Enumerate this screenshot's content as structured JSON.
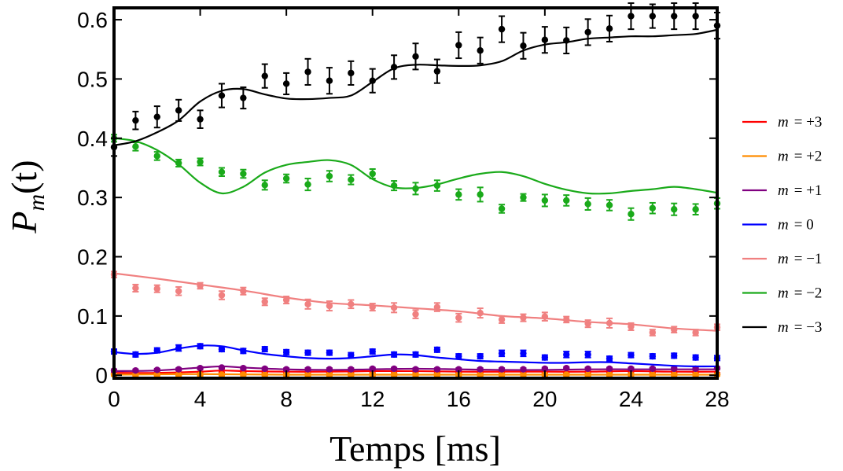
{
  "chart_data": {
    "type": "scatter",
    "xlabel": "Temps [ms]",
    "ylabel": "P_m(t)",
    "ylabel_parts": {
      "main": "P",
      "sub": "m",
      "arg": "(t)"
    },
    "xlim": [
      0,
      28
    ],
    "ylim": [
      -0.005,
      0.62
    ],
    "xticks": [
      0,
      4,
      8,
      12,
      16,
      20,
      24,
      28
    ],
    "xtick_labels": [
      "0",
      "4",
      "8",
      "12",
      "16",
      "20",
      "24",
      "28"
    ],
    "yticks": [
      0,
      0.1,
      0.2,
      0.3,
      0.4,
      0.5,
      0.6
    ],
    "ytick_labels": [
      "0",
      "0.1",
      "0.2",
      "0.3",
      "0.4",
      "0.5",
      "0.6"
    ],
    "grid": false,
    "legend_position": "right",
    "series": [
      {
        "name": "m = +3",
        "label_m": "m",
        "label_val": "= +3",
        "color": "#ff0000",
        "x": [
          0,
          1,
          2,
          3,
          4,
          5,
          6,
          7,
          8,
          9,
          10,
          11,
          12,
          13,
          14,
          15,
          16,
          17,
          18,
          19,
          20,
          21,
          22,
          23,
          24,
          25,
          26,
          27,
          28
        ],
        "y": [
          0.003,
          0.002,
          0.002,
          0.002,
          0.002,
          0.003,
          0.003,
          0.002,
          0.002,
          0.002,
          0.002,
          0.002,
          0.002,
          0.002,
          0.002,
          0.002,
          0.002,
          0.002,
          0.002,
          0.002,
          0.002,
          0.002,
          0.002,
          0.002,
          0.002,
          0.002,
          0.002,
          0.002,
          0.002
        ],
        "err": [
          0.002,
          0.002,
          0.002,
          0.002,
          0.002,
          0.002,
          0.002,
          0.002,
          0.002,
          0.002,
          0.002,
          0.002,
          0.002,
          0.002,
          0.002,
          0.002,
          0.002,
          0.002,
          0.002,
          0.002,
          0.002,
          0.002,
          0.002,
          0.002,
          0.002,
          0.002,
          0.002,
          0.002,
          0.002
        ],
        "fit_x": [
          0,
          2,
          4,
          5,
          6,
          8,
          10,
          12,
          14,
          16,
          18,
          20,
          22,
          24,
          26,
          28
        ],
        "fit_y": [
          0.004,
          0.004,
          0.006,
          0.008,
          0.007,
          0.006,
          0.006,
          0.007,
          0.007,
          0.006,
          0.006,
          0.006,
          0.006,
          0.007,
          0.006,
          0.006
        ]
      },
      {
        "name": "m = +2",
        "label_m": "m",
        "label_val": "= +2",
        "color": "#ff8c00",
        "x": [
          0,
          1,
          2,
          3,
          4,
          5,
          6,
          7,
          8,
          9,
          10,
          11,
          12,
          13,
          14,
          15,
          16,
          17,
          18,
          19,
          20,
          21,
          22,
          23,
          24,
          25,
          26,
          27,
          28
        ],
        "y": [
          0.001,
          0.001,
          0.001,
          0.001,
          0.001,
          0.001,
          0.001,
          0.001,
          0.001,
          0.001,
          0.001,
          0.001,
          0.001,
          0.001,
          0.001,
          0.001,
          0.001,
          0.001,
          0.001,
          0.001,
          0.001,
          0.001,
          0.001,
          0.001,
          0.001,
          0.001,
          0.001,
          0.001,
          0.001
        ],
        "err": [
          0.002,
          0.002,
          0.002,
          0.002,
          0.002,
          0.002,
          0.002,
          0.002,
          0.002,
          0.002,
          0.002,
          0.002,
          0.002,
          0.002,
          0.002,
          0.002,
          0.002,
          0.002,
          0.002,
          0.002,
          0.002,
          0.002,
          0.002,
          0.002,
          0.002,
          0.002,
          0.002,
          0.002,
          0.002
        ],
        "fit_x": [
          0,
          4,
          8,
          12,
          16,
          20,
          24,
          28
        ],
        "fit_y": [
          0.001,
          0.002,
          0.001,
          0.001,
          0.001,
          0.001,
          0.001,
          0.001
        ]
      },
      {
        "name": "m = +1",
        "label_m": "m",
        "label_val": "= +1",
        "color": "#800080",
        "x": [
          0,
          1,
          2,
          3,
          4,
          5,
          6,
          7,
          8,
          9,
          10,
          11,
          12,
          13,
          14,
          15,
          16,
          17,
          18,
          19,
          20,
          21,
          22,
          23,
          24,
          25,
          26,
          27,
          28
        ],
        "y": [
          0.008,
          0.008,
          0.009,
          0.01,
          0.012,
          0.013,
          0.012,
          0.011,
          0.01,
          0.01,
          0.01,
          0.01,
          0.011,
          0.011,
          0.01,
          0.01,
          0.01,
          0.01,
          0.01,
          0.01,
          0.011,
          0.012,
          0.011,
          0.011,
          0.011,
          0.011,
          0.011,
          0.011,
          0.012
        ],
        "err": [
          0.002,
          0.002,
          0.002,
          0.002,
          0.002,
          0.002,
          0.002,
          0.002,
          0.002,
          0.002,
          0.002,
          0.002,
          0.002,
          0.002,
          0.002,
          0.002,
          0.002,
          0.002,
          0.002,
          0.002,
          0.002,
          0.002,
          0.002,
          0.002,
          0.002,
          0.002,
          0.002,
          0.002,
          0.002
        ],
        "fit_x": [
          0,
          2,
          4,
          5,
          6,
          8,
          10,
          12,
          14,
          16,
          18,
          20,
          22,
          24,
          26,
          28
        ],
        "fit_y": [
          0.007,
          0.008,
          0.013,
          0.015,
          0.013,
          0.01,
          0.009,
          0.01,
          0.011,
          0.01,
          0.009,
          0.009,
          0.01,
          0.01,
          0.01,
          0.01
        ]
      },
      {
        "name": "m = 0",
        "label_m": "m",
        "label_val": "= 0",
        "color": "#0000ff",
        "x": [
          0,
          1,
          2,
          3,
          4,
          5,
          6,
          7,
          8,
          9,
          10,
          11,
          12,
          13,
          14,
          15,
          16,
          17,
          18,
          19,
          20,
          21,
          22,
          23,
          24,
          25,
          26,
          27,
          28
        ],
        "y": [
          0.04,
          0.035,
          0.042,
          0.046,
          0.049,
          0.044,
          0.041,
          0.044,
          0.039,
          0.038,
          0.038,
          0.034,
          0.04,
          0.035,
          0.035,
          0.043,
          0.032,
          0.032,
          0.037,
          0.037,
          0.03,
          0.035,
          0.035,
          0.028,
          0.034,
          0.032,
          0.033,
          0.03,
          0.029
        ],
        "err": [
          0.004,
          0.004,
          0.004,
          0.005,
          0.004,
          0.004,
          0.004,
          0.004,
          0.004,
          0.004,
          0.004,
          0.004,
          0.004,
          0.004,
          0.004,
          0.004,
          0.004,
          0.004,
          0.005,
          0.005,
          0.004,
          0.005,
          0.005,
          0.004,
          0.004,
          0.004,
          0.004,
          0.004,
          0.004
        ],
        "fit_x": [
          0,
          1,
          2,
          3,
          4,
          5,
          6,
          7,
          8,
          9,
          10,
          11,
          12,
          13,
          14,
          15,
          16,
          17,
          18,
          19,
          20,
          21,
          22,
          23,
          24,
          25,
          26,
          27,
          28
        ],
        "fit_y": [
          0.039,
          0.036,
          0.038,
          0.045,
          0.05,
          0.049,
          0.042,
          0.036,
          0.032,
          0.029,
          0.028,
          0.029,
          0.032,
          0.035,
          0.034,
          0.03,
          0.027,
          0.024,
          0.023,
          0.022,
          0.021,
          0.021,
          0.022,
          0.022,
          0.02,
          0.018,
          0.016,
          0.015,
          0.015
        ]
      },
      {
        "name": "m = −1",
        "label_m": "m",
        "label_val": "= −1",
        "color": "#f08080",
        "x": [
          0,
          1,
          2,
          3,
          4,
          5,
          6,
          7,
          8,
          9,
          10,
          11,
          12,
          13,
          14,
          15,
          16,
          17,
          18,
          19,
          20,
          21,
          22,
          23,
          24,
          25,
          26,
          27,
          28
        ],
        "y": [
          0.17,
          0.147,
          0.146,
          0.142,
          0.151,
          0.135,
          0.142,
          0.124,
          0.127,
          0.12,
          0.117,
          0.12,
          0.115,
          0.114,
          0.103,
          0.115,
          0.097,
          0.105,
          0.094,
          0.097,
          0.099,
          0.094,
          0.087,
          0.088,
          0.082,
          0.072,
          0.077,
          0.072,
          0.081
        ],
        "err": [
          0.005,
          0.006,
          0.006,
          0.007,
          0.005,
          0.007,
          0.006,
          0.006,
          0.006,
          0.008,
          0.008,
          0.007,
          0.006,
          0.008,
          0.007,
          0.007,
          0.007,
          0.008,
          0.006,
          0.006,
          0.007,
          0.005,
          0.006,
          0.008,
          0.006,
          0.005,
          0.005,
          0.005,
          0.005
        ],
        "fit_x": [
          0,
          2,
          4,
          6,
          8,
          10,
          12,
          14,
          16,
          18,
          20,
          22,
          24,
          26,
          28
        ],
        "fit_y": [
          0.172,
          0.163,
          0.153,
          0.143,
          0.131,
          0.122,
          0.118,
          0.113,
          0.108,
          0.1,
          0.096,
          0.09,
          0.086,
          0.079,
          0.075
        ]
      },
      {
        "name": "m = −2",
        "label_m": "m",
        "label_val": "= −2",
        "color": "#1aaa1a",
        "x": [
          0,
          1,
          2,
          3,
          4,
          5,
          6,
          7,
          8,
          9,
          10,
          11,
          12,
          13,
          14,
          15,
          16,
          17,
          18,
          19,
          20,
          21,
          22,
          23,
          24,
          25,
          26,
          27,
          28
        ],
        "y": [
          0.4,
          0.386,
          0.37,
          0.358,
          0.36,
          0.343,
          0.34,
          0.321,
          0.332,
          0.322,
          0.336,
          0.33,
          0.34,
          0.32,
          0.315,
          0.32,
          0.305,
          0.305,
          0.281,
          0.3,
          0.295,
          0.295,
          0.289,
          0.287,
          0.272,
          0.282,
          0.28,
          0.28,
          0.29
        ],
        "err": [
          0.006,
          0.007,
          0.007,
          0.006,
          0.006,
          0.007,
          0.007,
          0.008,
          0.007,
          0.01,
          0.009,
          0.008,
          0.008,
          0.008,
          0.01,
          0.009,
          0.009,
          0.012,
          0.007,
          0.006,
          0.01,
          0.009,
          0.01,
          0.009,
          0.01,
          0.009,
          0.01,
          0.009,
          0.009
        ],
        "fit_x": [
          0,
          1,
          2,
          3,
          4,
          5,
          6,
          7,
          8,
          9,
          10,
          11,
          12,
          13,
          14,
          15,
          16,
          17,
          18,
          19,
          20,
          21,
          22,
          23,
          24,
          25,
          26,
          27,
          28
        ],
        "fit_y": [
          0.4,
          0.395,
          0.38,
          0.356,
          0.325,
          0.307,
          0.318,
          0.342,
          0.355,
          0.36,
          0.363,
          0.355,
          0.331,
          0.317,
          0.316,
          0.322,
          0.332,
          0.34,
          0.343,
          0.336,
          0.323,
          0.313,
          0.307,
          0.307,
          0.311,
          0.314,
          0.318,
          0.314,
          0.308
        ]
      },
      {
        "name": "m = −3",
        "label_m": "m",
        "label_val": "= −3",
        "color": "#000000",
        "x": [
          0,
          1,
          2,
          3,
          4,
          5,
          6,
          7,
          8,
          9,
          10,
          11,
          12,
          13,
          14,
          15,
          16,
          17,
          18,
          19,
          20,
          21,
          22,
          23,
          24,
          25,
          26,
          27,
          28
        ],
        "y": [
          0.385,
          0.43,
          0.436,
          0.447,
          0.432,
          0.472,
          0.468,
          0.505,
          0.492,
          0.512,
          0.497,
          0.51,
          0.497,
          0.52,
          0.538,
          0.513,
          0.557,
          0.548,
          0.584,
          0.556,
          0.566,
          0.565,
          0.579,
          0.585,
          0.606,
          0.606,
          0.606,
          0.606,
          0.59
        ],
        "err": [
          0.015,
          0.015,
          0.018,
          0.018,
          0.015,
          0.02,
          0.018,
          0.02,
          0.018,
          0.022,
          0.022,
          0.02,
          0.02,
          0.02,
          0.022,
          0.02,
          0.022,
          0.022,
          0.022,
          0.022,
          0.022,
          0.022,
          0.022,
          0.022,
          0.022,
          0.02,
          0.022,
          0.022,
          0.022
        ],
        "fit_x": [
          0,
          1,
          2,
          3,
          4,
          5,
          6,
          7,
          8,
          9,
          10,
          11,
          12,
          13,
          14,
          15,
          16,
          17,
          18,
          19,
          20,
          21,
          22,
          23,
          24,
          25,
          26,
          27,
          28
        ],
        "fit_y": [
          0.388,
          0.395,
          0.41,
          0.43,
          0.462,
          0.48,
          0.483,
          0.474,
          0.467,
          0.466,
          0.468,
          0.472,
          0.495,
          0.518,
          0.524,
          0.523,
          0.522,
          0.523,
          0.53,
          0.548,
          0.558,
          0.562,
          0.568,
          0.57,
          0.572,
          0.572,
          0.574,
          0.576,
          0.583
        ]
      }
    ]
  }
}
